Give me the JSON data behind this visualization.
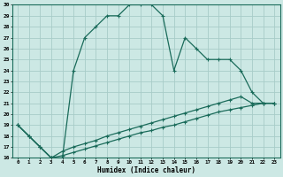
{
  "xlabel": "Humidex (Indice chaleur)",
  "bg_color": "#cce8e4",
  "grid_color": "#a8ccc8",
  "line_color": "#1a6b5a",
  "xlim": [
    -0.5,
    23.5
  ],
  "ylim": [
    16,
    30
  ],
  "xticks": [
    0,
    1,
    2,
    3,
    4,
    5,
    6,
    7,
    8,
    9,
    10,
    11,
    12,
    13,
    14,
    15,
    16,
    17,
    18,
    19,
    20,
    21,
    22,
    23
  ],
  "yticks": [
    16,
    17,
    18,
    19,
    20,
    21,
    22,
    23,
    24,
    25,
    26,
    27,
    28,
    29,
    30
  ],
  "series1": {
    "x": [
      0,
      1,
      2,
      3,
      4,
      5,
      6,
      7,
      8,
      9,
      10,
      11,
      12,
      13,
      14,
      15,
      16,
      17,
      18,
      19,
      20,
      21,
      22,
      23
    ],
    "y": [
      19,
      18,
      17,
      16,
      16,
      24,
      27,
      28,
      29,
      29,
      30,
      30,
      30,
      29,
      24,
      27,
      26,
      25,
      25,
      25,
      24,
      22,
      21,
      21
    ]
  },
  "series2": {
    "x": [
      0,
      3,
      23
    ],
    "y": [
      19,
      16,
      21
    ]
  },
  "series3": {
    "x": [
      0,
      3,
      23
    ],
    "y": [
      19,
      16,
      21
    ]
  },
  "series2_full": {
    "x": [
      0,
      1,
      2,
      3,
      4,
      5,
      6,
      7,
      8,
      9,
      10,
      11,
      12,
      13,
      14,
      15,
      16,
      17,
      18,
      19,
      20,
      21,
      22,
      23
    ],
    "y": [
      19,
      18,
      17,
      16,
      16.2,
      16.5,
      16.8,
      17.1,
      17.4,
      17.7,
      18.0,
      18.3,
      18.5,
      18.8,
      19.0,
      19.3,
      19.6,
      19.9,
      20.2,
      20.4,
      20.6,
      20.8,
      21.0,
      21.0
    ]
  },
  "series3_full": {
    "x": [
      0,
      1,
      2,
      3,
      4,
      5,
      6,
      7,
      8,
      9,
      10,
      11,
      12,
      13,
      14,
      15,
      16,
      17,
      18,
      19,
      20,
      21,
      22,
      23
    ],
    "y": [
      19,
      18,
      17,
      16,
      16.6,
      17.0,
      17.3,
      17.6,
      18.0,
      18.3,
      18.6,
      18.9,
      19.2,
      19.5,
      19.8,
      20.1,
      20.4,
      20.7,
      21.0,
      21.3,
      21.6,
      21.0,
      21.0,
      21.0
    ]
  }
}
